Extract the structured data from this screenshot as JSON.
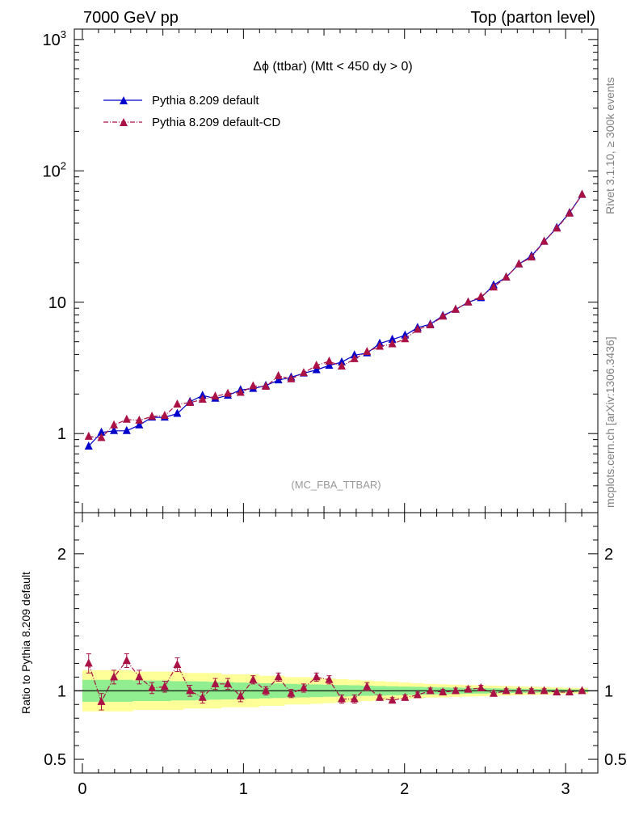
{
  "header": {
    "left": "7000 GeV pp",
    "right": "Top (parton level)"
  },
  "side_labels": {
    "rivet": "Rivet 3.1.10, ≥ 300k events",
    "mcplots": "mcplots.cern.ch [arXiv:1306.3436]"
  },
  "colors": {
    "series1": "#0000cc",
    "series2": "#aa1144",
    "band_inner": "#90ee90",
    "band_outer": "#ffff99"
  },
  "chart_data": [
    {
      "type": "line",
      "title": "Δϕ (ttbar) (Mtt < 450 dy > 0)",
      "watermark": "(MC_FBA_TTBAR)",
      "yscale": "log",
      "xlim": [
        -0.05,
        3.2
      ],
      "ylim": [
        0.25,
        1200
      ],
      "ytick_labels": [
        "1",
        "10",
        "10^2",
        "10^3"
      ],
      "legend_position": "top-left",
      "x": [
        0.039,
        0.118,
        0.196,
        0.275,
        0.353,
        0.432,
        0.511,
        0.589,
        0.668,
        0.746,
        0.825,
        0.903,
        0.982,
        1.06,
        1.139,
        1.217,
        1.296,
        1.374,
        1.453,
        1.532,
        1.61,
        1.689,
        1.767,
        1.846,
        1.924,
        2.003,
        2.081,
        2.16,
        2.238,
        2.317,
        2.395,
        2.474,
        2.553,
        2.631,
        2.71,
        2.788,
        2.867,
        2.945,
        3.024,
        3.102
      ],
      "series": [
        {
          "name": "Pythia 8.209 default",
          "values": [
            0.8,
            1.02,
            1.05,
            1.05,
            1.16,
            1.33,
            1.33,
            1.42,
            1.75,
            1.95,
            1.85,
            1.95,
            2.15,
            2.2,
            2.32,
            2.55,
            2.68,
            2.88,
            3.05,
            3.3,
            3.5,
            3.95,
            4.1,
            4.85,
            5.2,
            5.6,
            6.4,
            6.8,
            7.9,
            8.8,
            10.0,
            10.8,
            13.5,
            15.5,
            19.5,
            22.5,
            29.0,
            37.0,
            48.0,
            66.0
          ]
        },
        {
          "name": "Pythia 8.209 default-CD",
          "values": [
            0.95,
            0.93,
            1.16,
            1.28,
            1.26,
            1.35,
            1.37,
            1.67,
            1.72,
            1.82,
            1.92,
            2.02,
            2.05,
            2.3,
            2.28,
            2.75,
            2.6,
            2.9,
            3.3,
            3.55,
            3.25,
            3.7,
            4.2,
            4.6,
            4.8,
            5.25,
            6.2,
            6.7,
            7.8,
            8.8,
            10.0,
            11.0,
            13.0,
            15.5,
            19.5,
            22.0,
            29.0,
            36.5,
            47.5,
            66.0
          ]
        }
      ]
    },
    {
      "type": "line",
      "ylabel": "Ratio to Pythia 8.209 default",
      "xlim": [
        -0.05,
        3.2
      ],
      "ylim": [
        0.4,
        2.3
      ],
      "ytick_labels": [
        "0.5",
        "1",
        "2"
      ],
      "xtick_labels": [
        "0",
        "1",
        "2",
        "3"
      ],
      "x": [
        0.039,
        0.118,
        0.196,
        0.275,
        0.353,
        0.432,
        0.511,
        0.589,
        0.668,
        0.746,
        0.825,
        0.903,
        0.982,
        1.06,
        1.139,
        1.217,
        1.296,
        1.374,
        1.453,
        1.532,
        1.61,
        1.689,
        1.767,
        1.846,
        1.924,
        2.003,
        2.081,
        2.16,
        2.238,
        2.317,
        2.395,
        2.474,
        2.553,
        2.631,
        2.71,
        2.788,
        2.867,
        2.945,
        3.024,
        3.102
      ],
      "series": [
        {
          "name": "Pythia 8.209 default-CD",
          "values": [
            1.2,
            0.92,
            1.1,
            1.22,
            1.1,
            1.02,
            1.03,
            1.19,
            1.0,
            0.95,
            1.05,
            1.05,
            0.96,
            1.08,
            1.0,
            1.1,
            0.98,
            1.02,
            1.1,
            1.08,
            0.94,
            0.94,
            1.03,
            0.95,
            0.93,
            0.95,
            0.97,
            1.0,
            0.99,
            1.0,
            1.01,
            1.02,
            0.98,
            1.0,
            1.0,
            1.0,
            1.0,
            0.99,
            0.99,
            1.0
          ],
          "errors": [
            0.07,
            0.06,
            0.05,
            0.05,
            0.05,
            0.04,
            0.04,
            0.05,
            0.04,
            0.04,
            0.04,
            0.04,
            0.04,
            0.03,
            0.03,
            0.03,
            0.03,
            0.03,
            0.03,
            0.03,
            0.03,
            0.03,
            0.03,
            0.02,
            0.02,
            0.02,
            0.02,
            0.02,
            0.02,
            0.02,
            0.02,
            0.02,
            0.02,
            0.015,
            0.015,
            0.015,
            0.015,
            0.01,
            0.01,
            0.01
          ]
        }
      ],
      "band_outer": [
        0.15,
        0.15,
        0.15,
        0.15,
        0.14,
        0.14,
        0.14,
        0.14,
        0.13,
        0.13,
        0.13,
        0.12,
        0.12,
        0.12,
        0.11,
        0.11,
        0.1,
        0.1,
        0.095,
        0.09,
        0.085,
        0.08,
        0.075,
        0.07,
        0.065,
        0.06,
        0.055,
        0.05,
        0.048,
        0.045,
        0.042,
        0.04,
        0.038,
        0.035,
        0.032,
        0.03,
        0.028,
        0.025,
        0.022,
        0.02
      ],
      "band_inner": [
        0.08,
        0.08,
        0.08,
        0.08,
        0.075,
        0.075,
        0.075,
        0.07,
        0.07,
        0.068,
        0.065,
        0.063,
        0.06,
        0.058,
        0.055,
        0.053,
        0.05,
        0.048,
        0.046,
        0.044,
        0.042,
        0.04,
        0.037,
        0.035,
        0.033,
        0.031,
        0.029,
        0.027,
        0.025,
        0.023,
        0.021,
        0.02,
        0.018,
        0.016,
        0.015,
        0.014,
        0.013,
        0.012,
        0.011,
        0.01
      ]
    }
  ]
}
